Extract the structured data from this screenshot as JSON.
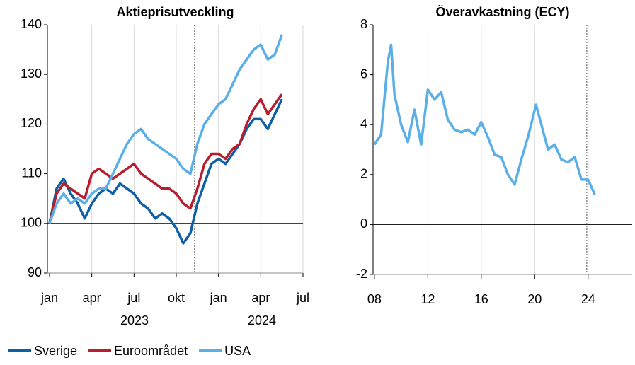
{
  "chart_data": [
    {
      "type": "line",
      "title": "Aktieprisutveckling",
      "x": [
        0,
        0.5,
        1,
        1.5,
        2,
        2.5,
        3,
        3.5,
        4,
        4.5,
        5,
        5.5,
        6,
        6.5,
        7,
        7.5,
        8,
        8.5,
        9,
        9.5,
        10,
        10.5,
        11,
        11.5,
        12,
        12.5,
        13,
        13.5,
        14,
        14.5,
        15,
        15.5,
        16,
        16.5
      ],
      "series": [
        {
          "name": "Sverige",
          "color": "#0e5fa3",
          "values": [
            100,
            107,
            109,
            106,
            104,
            101,
            104,
            106,
            107,
            106,
            108,
            107,
            106,
            104,
            103,
            101,
            102,
            101,
            99,
            96,
            98,
            104,
            108,
            112,
            113,
            112,
            114,
            116,
            119,
            121,
            121,
            119,
            122,
            125
          ]
        },
        {
          "name": "Euroområdet",
          "color": "#b51f2e",
          "values": [
            100,
            106,
            108,
            107,
            106,
            105,
            110,
            111,
            110,
            109,
            110,
            111,
            112,
            110,
            109,
            108,
            107,
            107,
            106,
            104,
            103,
            107,
            112,
            114,
            114,
            113,
            115,
            116,
            120,
            123,
            125,
            122,
            124,
            126
          ]
        },
        {
          "name": "USA",
          "color": "#5aafe8",
          "values": [
            100,
            104,
            106,
            104,
            105,
            104,
            106,
            107,
            107,
            110,
            113,
            116,
            118,
            119,
            117,
            116,
            115,
            114,
            113,
            111,
            110,
            116,
            120,
            122,
            124,
            125,
            128,
            131,
            133,
            135,
            136,
            133,
            134,
            138
          ]
        }
      ],
      "xlim": [
        -0.15,
        18
      ],
      "xticks": [
        {
          "value": 0,
          "label": "jan"
        },
        {
          "value": 3,
          "label": "apr"
        },
        {
          "value": 6,
          "label": "jul"
        },
        {
          "value": 9,
          "label": "okt"
        },
        {
          "value": 12,
          "label": "jan"
        },
        {
          "value": 15,
          "label": "apr"
        },
        {
          "value": 18,
          "label": "jul"
        }
      ],
      "year_labels": [
        "2023",
        "2024"
      ],
      "ylim": [
        90,
        140
      ],
      "yticks": [
        90,
        100,
        110,
        120,
        130,
        140
      ],
      "reference_y": 100,
      "marker_x": 10.3,
      "grid": true
    },
    {
      "type": "line",
      "title": "Överavkastning (ECY)",
      "x": [
        2008,
        2008.5,
        2009,
        2009.25,
        2009.5,
        2010,
        2010.5,
        2011,
        2011.5,
        2012,
        2012.5,
        2013,
        2013.5,
        2014,
        2014.5,
        2015,
        2015.5,
        2016,
        2016.5,
        2017,
        2017.5,
        2018,
        2018.5,
        2019,
        2019.5,
        2020.1,
        2020.5,
        2021,
        2021.5,
        2022,
        2022.5,
        2023,
        2023.5,
        2024,
        2024.5
      ],
      "series": [
        {
          "color": "#5aafe8",
          "values": [
            3.2,
            3.6,
            6.5,
            7.2,
            5.2,
            4.0,
            3.3,
            4.6,
            3.2,
            5.4,
            5.0,
            5.3,
            4.2,
            3.8,
            3.7,
            3.8,
            3.6,
            4.1,
            3.5,
            2.8,
            2.7,
            2.0,
            1.6,
            2.6,
            3.5,
            4.8,
            4.0,
            3.0,
            3.2,
            2.6,
            2.5,
            2.7,
            1.8,
            1.8,
            1.2
          ]
        }
      ],
      "xlim": [
        2007.9,
        2027.3
      ],
      "xticks": [
        {
          "value": 2008,
          "label": "08"
        },
        {
          "value": 2012,
          "label": "12"
        },
        {
          "value": 2016,
          "label": "16"
        },
        {
          "value": 2020,
          "label": "20"
        },
        {
          "value": 2024,
          "label": "24"
        }
      ],
      "ylim": [
        -2,
        8
      ],
      "yticks": [
        -2,
        0,
        2,
        4,
        6,
        8
      ],
      "reference_y": 0,
      "marker_x": 2023.9,
      "grid": true
    }
  ]
}
